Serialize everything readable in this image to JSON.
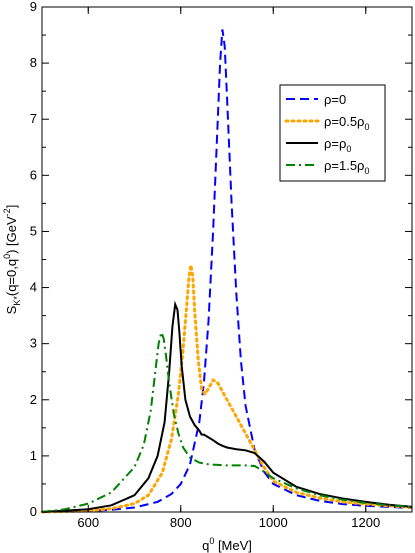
{
  "chart_data": {
    "type": "line",
    "xlabel": {
      "base": "q",
      "sup": "0",
      "rest": " [MeV]"
    },
    "ylabel": {
      "p1": "S",
      "sub1": "K*",
      "p2": "(q=0,q",
      "sup2": "0",
      "p3": ") [GeV",
      "sup3": "-2",
      "p4": "]"
    },
    "xlim": [
      500,
      1300
    ],
    "ylim": [
      0,
      9
    ],
    "x_ticks": [
      600,
      800,
      1000,
      1200
    ],
    "x_tick_labels": [
      "600",
      "800",
      "1000",
      "1200"
    ],
    "y_ticks": [
      0,
      1,
      2,
      3,
      4,
      5,
      6,
      7,
      8,
      9
    ],
    "y_tick_labels": [
      "0",
      "1",
      "2",
      "3",
      "4",
      "5",
      "6",
      "7",
      "8",
      "9"
    ],
    "grid": false,
    "legend_position": "top-right",
    "series": [
      {
        "legend": {
          "base": "ρ=0",
          "sub": ""
        },
        "color": "#0000ff",
        "style": "dashed",
        "x": [
          500,
          550,
          600,
          650,
          700,
          750,
          780,
          800,
          820,
          840,
          850,
          860,
          870,
          880,
          885,
          890,
          895,
          900,
          910,
          920,
          930,
          940,
          960,
          980,
          1000,
          1050,
          1100,
          1150,
          1200,
          1250,
          1300
        ],
        "y": [
          0,
          0.01,
          0.02,
          0.04,
          0.08,
          0.18,
          0.32,
          0.5,
          0.85,
          1.6,
          2.3,
          3.4,
          5.0,
          7.0,
          8.0,
          8.6,
          8.3,
          7.4,
          5.5,
          3.9,
          2.7,
          1.9,
          1.1,
          0.72,
          0.5,
          0.3,
          0.2,
          0.14,
          0.11,
          0.09,
          0.07
        ]
      },
      {
        "legend": {
          "base": "ρ=0.5ρ",
          "sub": "0"
        },
        "color": "#ffa500",
        "style": "dotted",
        "x": [
          500,
          600,
          650,
          700,
          730,
          760,
          780,
          795,
          805,
          812,
          818,
          822,
          826,
          830,
          838,
          845,
          852,
          860,
          870,
          880,
          890,
          900,
          920,
          940,
          960,
          980,
          1000,
          1050,
          1100,
          1150,
          1200,
          1250,
          1300
        ],
        "y": [
          0,
          0.02,
          0.06,
          0.15,
          0.3,
          0.7,
          1.3,
          2.1,
          2.9,
          3.6,
          4.2,
          4.4,
          4.2,
          3.6,
          2.7,
          2.2,
          2.1,
          2.2,
          2.35,
          2.3,
          2.15,
          2.0,
          1.7,
          1.4,
          1.1,
          0.8,
          0.55,
          0.35,
          0.25,
          0.18,
          0.14,
          0.11,
          0.08
        ]
      },
      {
        "legend": {
          "base": "ρ=ρ",
          "sub": "0"
        },
        "color": "#000000",
        "style": "solid",
        "x": [
          500,
          600,
          650,
          700,
          730,
          750,
          765,
          775,
          782,
          788,
          793,
          797,
          802,
          810,
          820,
          830,
          840,
          845,
          850,
          860,
          870,
          880,
          890,
          900,
          920,
          940,
          960,
          980,
          1000,
          1050,
          1100,
          1150,
          1200,
          1250,
          1300
        ],
        "y": [
          0,
          0.05,
          0.12,
          0.3,
          0.6,
          1.0,
          1.6,
          2.5,
          3.3,
          3.7,
          3.6,
          3.2,
          2.6,
          2.0,
          1.7,
          1.55,
          1.45,
          1.38,
          1.38,
          1.33,
          1.28,
          1.22,
          1.18,
          1.15,
          1.12,
          1.1,
          1.05,
          0.9,
          0.7,
          0.45,
          0.32,
          0.24,
          0.18,
          0.13,
          0.09
        ]
      },
      {
        "legend": {
          "base": "ρ=1.5ρ",
          "sub": "0"
        },
        "color": "#008000",
        "style": "dashdot",
        "x": [
          500,
          550,
          600,
          650,
          700,
          720,
          735,
          745,
          752,
          758,
          763,
          768,
          775,
          785,
          795,
          805,
          820,
          840,
          860,
          880,
          900,
          920,
          940,
          960,
          980,
          1000,
          1050,
          1100,
          1150,
          1200,
          1250,
          1300
        ],
        "y": [
          0,
          0.05,
          0.15,
          0.35,
          0.8,
          1.2,
          1.8,
          2.5,
          3.0,
          3.2,
          3.1,
          2.8,
          2.3,
          1.75,
          1.4,
          1.15,
          0.97,
          0.88,
          0.85,
          0.84,
          0.83,
          0.83,
          0.83,
          0.82,
          0.72,
          0.6,
          0.42,
          0.3,
          0.22,
          0.16,
          0.12,
          0.09
        ]
      }
    ]
  }
}
